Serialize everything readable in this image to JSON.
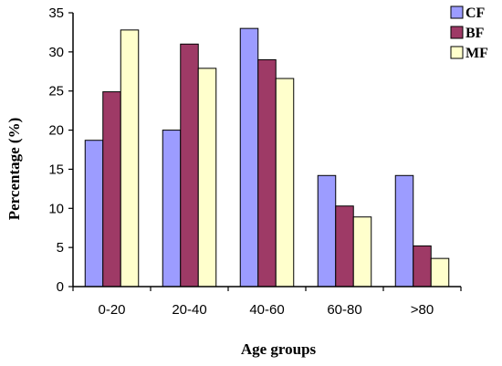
{
  "chart_data": {
    "type": "bar",
    "categories": [
      "0-20",
      "20-40",
      "40-60",
      "60-80",
      ">80"
    ],
    "series": [
      {
        "name": "CF",
        "values": [
          18.7,
          20.0,
          33.0,
          14.2,
          14.2
        ],
        "color": "#9c9cff"
      },
      {
        "name": "BF",
        "values": [
          24.9,
          31.0,
          29.0,
          10.3,
          5.2
        ],
        "color": "#9e3a66"
      },
      {
        "name": "MF",
        "values": [
          32.8,
          27.9,
          26.6,
          8.9,
          3.6
        ],
        "color": "#ffffcc"
      }
    ],
    "xlabel": "Age groups",
    "ylabel": "Percentage (%)",
    "ylim": [
      0,
      35
    ],
    "yticks": [
      0,
      5,
      10,
      15,
      20,
      25,
      30,
      35
    ],
    "grid": false,
    "legend": "top-right"
  }
}
